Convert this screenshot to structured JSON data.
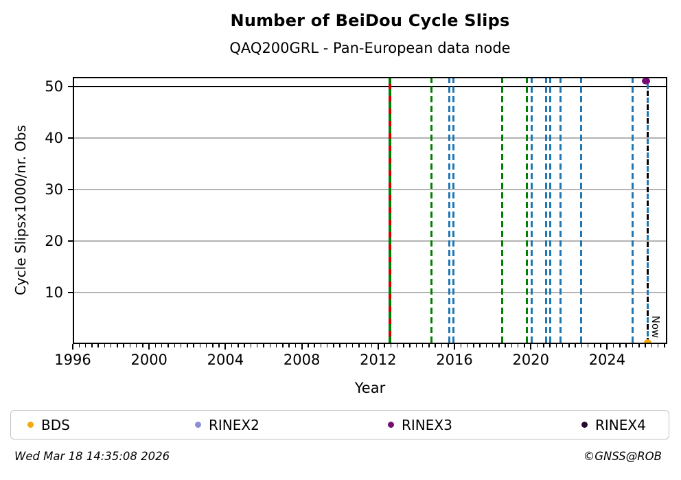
{
  "header": {
    "title": "Number of BeiDou Cycle Slips",
    "subtitle": "QAQ200GRL - Pan-European data node"
  },
  "chart_data": {
    "type": "line",
    "title": "Number of BeiDou Cycle Slips",
    "subtitle": "QAQ200GRL - Pan-European data node",
    "xlabel": "Year",
    "ylabel": "Cycle Slipsx1000/nr. Obs",
    "xlim": [
      1996,
      2027.15
    ],
    "ylim": [
      0,
      51.87
    ],
    "x_major_ticks": [
      1996,
      2000,
      2004,
      2008,
      2012,
      2016,
      2020,
      2024
    ],
    "x_minor_ticks_per_year": 3,
    "y_major_ticks": [
      10,
      20,
      30,
      40,
      50
    ],
    "grid": "horizontal",
    "grid_color": "#b3b3b3",
    "hline": {
      "y": 50,
      "color": "#000000"
    },
    "event_lines": [
      {
        "x": 2012.61,
        "pattern": "solid-alternating",
        "colors": [
          "#008000",
          "#d40000"
        ]
      },
      {
        "x": 2014.78,
        "pattern": "dashed",
        "colors": [
          "#008000"
        ]
      },
      {
        "x": 2015.74,
        "pattern": "dashed",
        "colors": [
          "#1f77b4"
        ]
      },
      {
        "x": 2015.95,
        "pattern": "dashed",
        "colors": [
          "#1f77b4"
        ]
      },
      {
        "x": 2018.5,
        "pattern": "dashed",
        "colors": [
          "#008000"
        ]
      },
      {
        "x": 2019.8,
        "pattern": "dashed",
        "colors": [
          "#008000"
        ]
      },
      {
        "x": 2020.06,
        "pattern": "dashed",
        "colors": [
          "#1f77b4"
        ]
      },
      {
        "x": 2020.81,
        "pattern": "dashed",
        "colors": [
          "#1f77b4"
        ]
      },
      {
        "x": 2021.02,
        "pattern": "dashed",
        "colors": [
          "#1f77b4"
        ]
      },
      {
        "x": 2021.56,
        "pattern": "dashed",
        "colors": [
          "#1f77b4"
        ]
      },
      {
        "x": 2022.65,
        "pattern": "dashed",
        "colors": [
          "#1f77b4"
        ]
      },
      {
        "x": 2025.34,
        "pattern": "dashed",
        "colors": [
          "#1f77b4"
        ]
      },
      {
        "x": 2026.12,
        "pattern": "dashed-alternating",
        "colors": [
          "#000000",
          "#1f77b4"
        ]
      }
    ],
    "now_label": {
      "text": "Now",
      "x": 2026.55,
      "y": 3.3
    },
    "points": [
      {
        "series": "RINEX3",
        "x": 2026.04,
        "y": 51.1,
        "color": "#760d76",
        "w": 12,
        "h": 10
      },
      {
        "series": "BDS",
        "x": 2026.12,
        "y": 0.3,
        "color": "#f3a712",
        "w": 11,
        "h": 10
      }
    ],
    "legend": [
      {
        "label": "BDS",
        "color": "#f3a712"
      },
      {
        "label": "RINEX2",
        "color": "#8d8dd3"
      },
      {
        "label": "RINEX3",
        "color": "#760d76"
      },
      {
        "label": "RINEX4",
        "color": "#270b2e"
      }
    ],
    "legend_position": "bottom"
  },
  "footer": {
    "timestamp": "Wed Mar 18 14:35:08 2026",
    "credit": "©GNSS@ROB"
  }
}
